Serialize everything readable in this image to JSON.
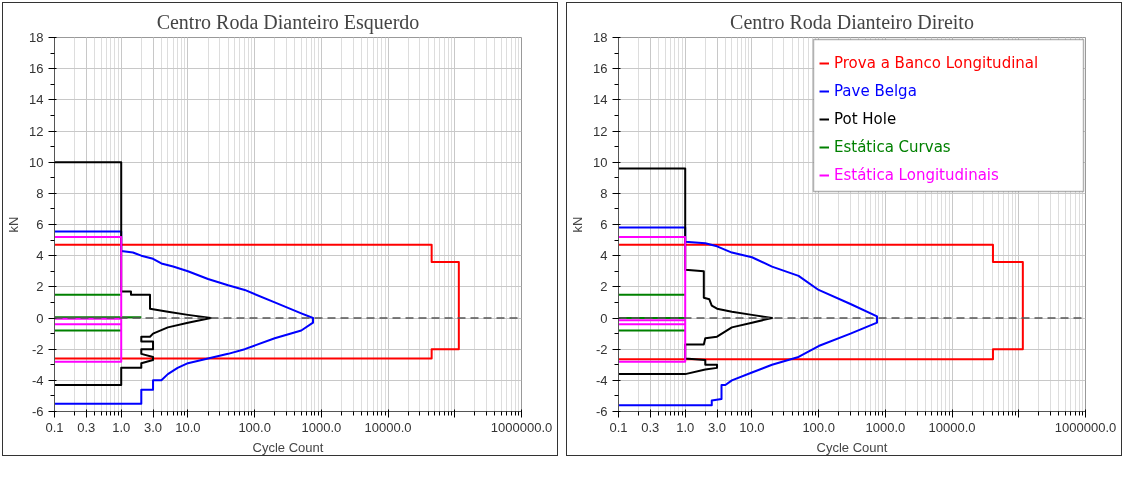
{
  "chart_data": [
    {
      "type": "line",
      "title": "Centro Roda Dianteiro Esquerdo",
      "xlabel": "Cycle Count",
      "ylabel": "kN",
      "log": "x",
      "grid": true,
      "legend": false,
      "xlim": [
        0.1,
        1000000
      ],
      "ylim": [
        -6,
        18
      ],
      "xticks": [
        {
          "value": 0.1,
          "label": "0.1"
        },
        {
          "value": 0.3,
          "label": "0.3"
        },
        {
          "value": 1,
          "label": "1.0"
        },
        {
          "value": 3,
          "label": "3.0"
        },
        {
          "value": 10,
          "label": "10.0"
        },
        {
          "value": 100,
          "label": "100.0"
        },
        {
          "value": 1000,
          "label": "1000.0"
        },
        {
          "value": 10000,
          "label": "10000.0"
        },
        {
          "value": 100000,
          "label": null
        },
        {
          "value": 1000000,
          "label": "1000000.0"
        }
      ],
      "yticks": [
        -6,
        -4,
        -2,
        0,
        2,
        4,
        6,
        8,
        10,
        12,
        14,
        16,
        18
      ],
      "ref_lines": [
        {
          "axis": "y",
          "value": 0,
          "color": "#555555",
          "line_style": "dashed"
        }
      ],
      "series": [
        {
          "color": "#ff0000",
          "x": [
            0.1,
            45000,
            45000,
            115000,
            115000,
            45000,
            45000,
            0.1
          ],
          "values": [
            4.7,
            4.7,
            3.6,
            3.6,
            -2.0,
            -2.0,
            -2.6,
            -2.6
          ]
        },
        {
          "color": "#0000ff",
          "x": [
            0.1,
            1,
            1,
            1.5,
            2,
            3,
            4,
            6,
            10,
            20,
            40,
            71,
            200,
            500,
            750,
            750,
            500,
            200,
            71,
            40,
            20,
            10,
            7,
            5,
            4,
            3,
            3,
            2,
            2,
            0.1
          ],
          "values": [
            5.55,
            5.55,
            4.3,
            4.2,
            4.0,
            3.8,
            3.5,
            3.3,
            3.0,
            2.5,
            2.1,
            1.8,
            1.0,
            0.3,
            0,
            -0.3,
            -0.8,
            -1.3,
            -2.0,
            -2.3,
            -2.6,
            -2.9,
            -3.2,
            -3.6,
            -4.0,
            -4.0,
            -4.6,
            -4.6,
            -5.5,
            -5.5
          ]
        },
        {
          "color": "#000000",
          "x": [
            0.1,
            1,
            1,
            1.4,
            1.4,
            2.7,
            2.7,
            5,
            10,
            22,
            10,
            5,
            3,
            2.7,
            2,
            2,
            3,
            3,
            2,
            2,
            3,
            3,
            2,
            2,
            1,
            1,
            0.1
          ],
          "values": [
            10,
            10,
            1.7,
            1.7,
            1.5,
            1.5,
            0.6,
            0.4,
            0.2,
            0,
            -0.3,
            -0.6,
            -1.0,
            -1.2,
            -1.2,
            -1.5,
            -1.5,
            -2.0,
            -2.0,
            -2.3,
            -2.5,
            -2.7,
            -2.9,
            -3.2,
            -3.2,
            -4.3,
            -4.3
          ]
        },
        {
          "color": "#008000",
          "x": [
            0.1,
            1
          ],
          "values": [
            1.5,
            1.5
          ]
        },
        {
          "color": "#008000",
          "x": [
            0.1,
            2
          ],
          "values": [
            0.05,
            0.05
          ]
        },
        {
          "color": "#008000",
          "x": [
            0.1,
            1
          ],
          "values": [
            -0.8,
            -0.8
          ]
        },
        {
          "color": "#ff00ff",
          "x": [
            0.1,
            1,
            1,
            0.1
          ],
          "values": [
            5.2,
            5.2,
            -2.8,
            -2.8
          ]
        },
        {
          "color": "#ff00ff",
          "x": [
            0.1,
            1
          ],
          "values": [
            -0.4,
            -0.4
          ]
        },
        {
          "color": "#ff00ff",
          "x": [
            0.1,
            1
          ],
          "values": [
            -0.05,
            -0.05
          ]
        }
      ]
    },
    {
      "type": "line",
      "title": "Centro Roda Dianteiro Direito",
      "xlabel": "Cycle Count",
      "ylabel": "kN",
      "log": "x",
      "grid": true,
      "legend": "top right",
      "xlim": [
        0.1,
        1000000
      ],
      "ylim": [
        -6,
        18
      ],
      "xticks": [
        {
          "value": 0.1,
          "label": "0.1"
        },
        {
          "value": 0.3,
          "label": "0.3"
        },
        {
          "value": 1,
          "label": "1.0"
        },
        {
          "value": 3,
          "label": "3.0"
        },
        {
          "value": 10,
          "label": "10.0"
        },
        {
          "value": 100,
          "label": "100.0"
        },
        {
          "value": 1000,
          "label": "1000.0"
        },
        {
          "value": 10000,
          "label": "10000.0"
        },
        {
          "value": 100000,
          "label": null
        },
        {
          "value": 1000000,
          "label": "1000000.0"
        }
      ],
      "yticks": [
        -6,
        -4,
        -2,
        0,
        2,
        4,
        6,
        8,
        10,
        12,
        14,
        16,
        18
      ],
      "ref_lines": [
        {
          "axis": "y",
          "value": 0,
          "color": "#555555",
          "line_style": "dashed"
        }
      ],
      "series": [
        {
          "name": "Prova a Banco Longitudinal",
          "color": "#ff0000",
          "x": [
            0.1,
            41000,
            41000,
            115000,
            115000,
            41000,
            41000,
            0.1
          ],
          "values": [
            4.7,
            4.7,
            3.6,
            3.6,
            -2.0,
            -2.0,
            -2.65,
            -2.65
          ]
        },
        {
          "name": "Pave Belga",
          "color": "#0000ff",
          "x": [
            0.1,
            1,
            1,
            2,
            3,
            5,
            10,
            20,
            50,
            100,
            300,
            750,
            750,
            300,
            100,
            50,
            20,
            10,
            5,
            4,
            3.5,
            3.5,
            2.5,
            2.5,
            0.1
          ],
          "values": [
            5.8,
            5.8,
            4.9,
            4.8,
            4.6,
            4.2,
            3.9,
            3.3,
            2.7,
            1.8,
            0.9,
            0.1,
            -0.3,
            -1.0,
            -1.8,
            -2.5,
            -3.0,
            -3.5,
            -4.0,
            -4.3,
            -4.3,
            -5.2,
            -5.3,
            -5.6,
            -5.6
          ]
        },
        {
          "name": "Pot Hole",
          "color": "#000000",
          "x": [
            0.1,
            1,
            1,
            1.9,
            1.9,
            2.3,
            2.5,
            3,
            5,
            10,
            20,
            10,
            5,
            3,
            2,
            1.9,
            1,
            1,
            2,
            2,
            3,
            3,
            2,
            1,
            0.1
          ],
          "values": [
            9.6,
            9.6,
            3.1,
            3.0,
            1.3,
            1.2,
            0.8,
            0.6,
            0.4,
            0.2,
            0,
            -0.3,
            -0.6,
            -1.2,
            -1.3,
            -1.7,
            -1.7,
            -2.6,
            -2.7,
            -3.0,
            -3.0,
            -3.2,
            -3.3,
            -3.6,
            -3.6
          ]
        },
        {
          "name": "Estática Curvas",
          "color": "#008000",
          "x": [
            0.1,
            1
          ],
          "values": [
            1.5,
            1.5
          ]
        },
        {
          "color": "#008000",
          "x": [
            0.1,
            1
          ],
          "values": [
            0.0,
            0.0
          ]
        },
        {
          "color": "#008000",
          "x": [
            0.1,
            1
          ],
          "values": [
            -0.8,
            -0.8
          ]
        },
        {
          "name": "Estática Longitudinais",
          "color": "#ff00ff",
          "x": [
            0.1,
            1,
            1,
            0.1
          ],
          "values": [
            5.2,
            5.2,
            -2.8,
            -2.8
          ]
        },
        {
          "color": "#ff00ff",
          "x": [
            0.1,
            1
          ],
          "values": [
            -0.4,
            -0.4
          ]
        },
        {
          "color": "#ff00ff",
          "x": [
            0.1,
            1
          ],
          "values": [
            -0.15,
            -0.15
          ]
        }
      ]
    }
  ]
}
